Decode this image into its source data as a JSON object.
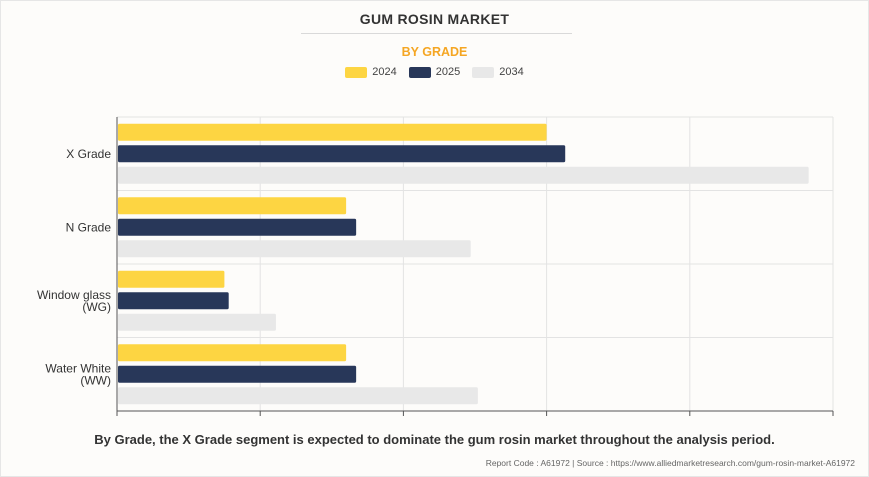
{
  "header": {
    "title": "GUM ROSIN MARKET",
    "subtitle": "BY GRADE"
  },
  "legend": [
    {
      "label": "2024",
      "color": "#fdd542"
    },
    {
      "label": "2025",
      "color": "#283759"
    },
    {
      "label": "2034",
      "color": "#e8e8e8"
    }
  ],
  "chart_data": {
    "type": "bar",
    "orientation": "horizontal",
    "categories": [
      [
        "X Grade"
      ],
      [
        "N Grade"
      ],
      [
        "Window glass",
        "(WG)"
      ],
      [
        "Water White",
        "(WW)"
      ]
    ],
    "series": [
      {
        "name": "2024",
        "color": "#fdd542",
        "values": [
          3.0,
          1.6,
          0.75,
          1.6
        ]
      },
      {
        "name": "2025",
        "color": "#283759",
        "values": [
          3.13,
          1.67,
          0.78,
          1.67
        ]
      },
      {
        "name": "2034",
        "color": "#e8e8e8",
        "values": [
          4.83,
          2.47,
          1.11,
          2.52
        ]
      }
    ],
    "xlim": [
      0,
      5
    ],
    "grid": true,
    "legend_position": "top-center"
  },
  "footer": {
    "caption": "By Grade, the X Grade segment is expected to dominate the gum rosin market throughout the analysis period.",
    "source": "Report Code : A61972  |  Source : https://www.alliedmarketresearch.com/gum-rosin-market-A61972"
  }
}
